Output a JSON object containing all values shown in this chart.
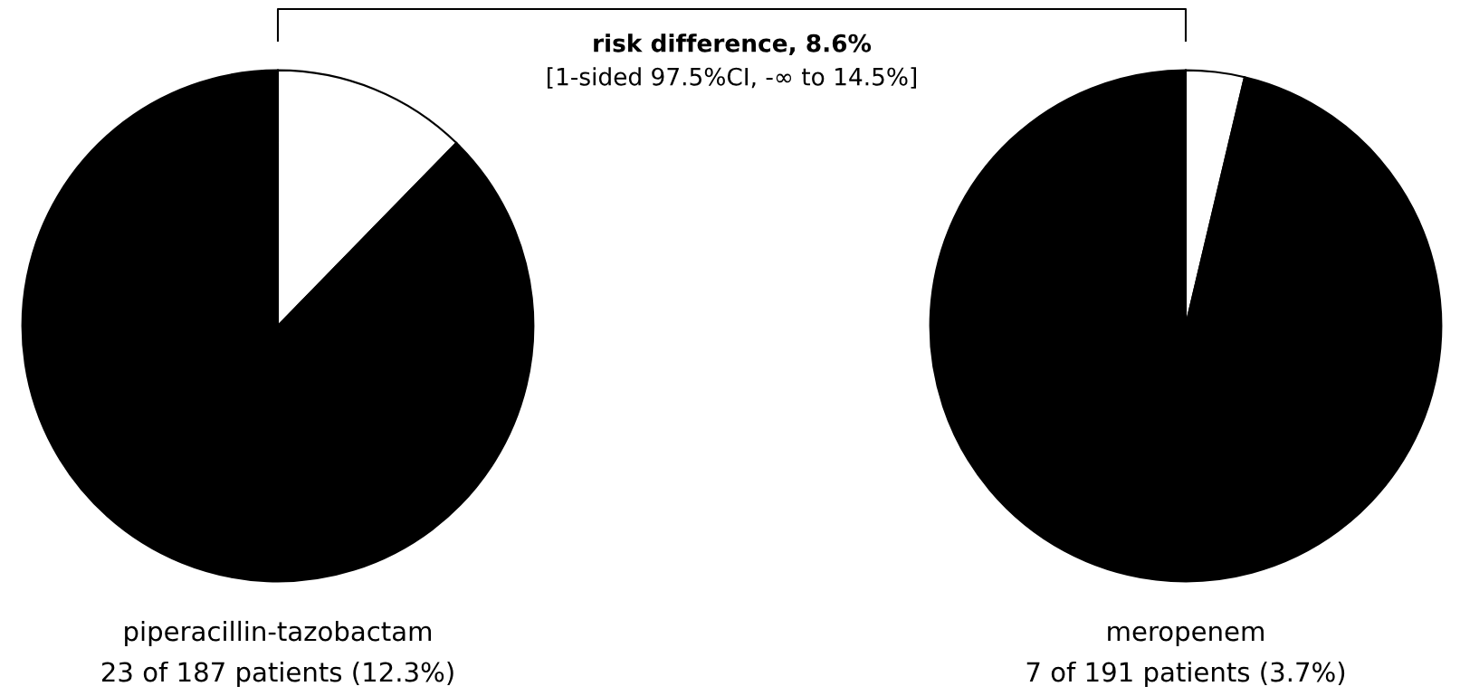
{
  "chart_data": [
    {
      "type": "pie",
      "title": "piperacillin-tazobactam",
      "subtitle": "23 of 187 patients (12.3%)",
      "categories": [
        null,
        null
      ],
      "values": [
        12.3,
        87.7
      ],
      "colors": [
        "#ffffff",
        "#000000"
      ],
      "annotations": [
        "risk difference, 8.6%",
        "[1-sided 97.5%CI, -∞ to 14.5%]"
      ]
    },
    {
      "type": "pie",
      "title": "meropenem",
      "subtitle": "7 of 191 patients (3.7%)",
      "categories": [
        null,
        null
      ],
      "values": [
        3.7,
        96.3
      ],
      "colors": [
        "#ffffff",
        "#000000"
      ]
    }
  ]
}
